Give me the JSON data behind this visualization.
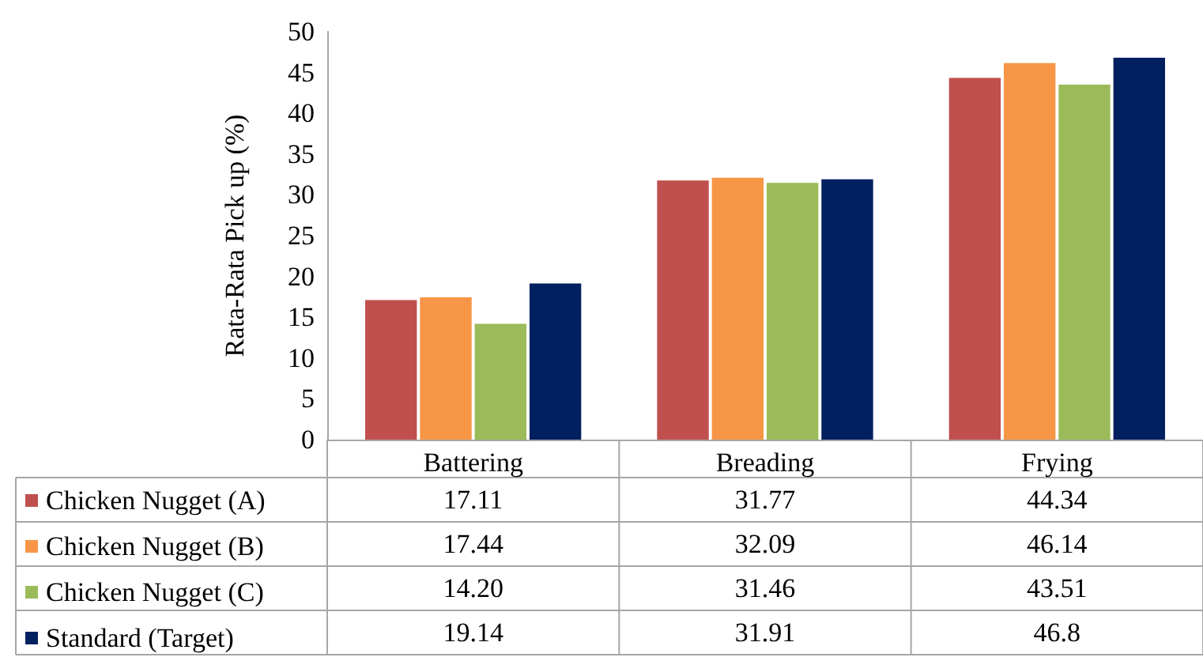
{
  "chart_data": {
    "type": "bar",
    "ylabel": "Rata-Rata Pick up (%)",
    "categories": [
      "Battering",
      "Breading",
      "Frying"
    ],
    "series": [
      {
        "name": "Chicken Nugget (A)",
        "color": "#c0504d",
        "values": [
          17.11,
          31.77,
          44.34
        ],
        "value_labels": [
          "17.11",
          "31.77",
          "44.34"
        ]
      },
      {
        "name": "Chicken Nugget (B)",
        "color": "#f79646",
        "values": [
          17.44,
          32.09,
          46.14
        ],
        "value_labels": [
          "17.44",
          "32.09",
          "46.14"
        ]
      },
      {
        "name": "Chicken Nugget (C)",
        "color": "#9bbb59",
        "values": [
          14.2,
          31.46,
          43.51
        ],
        "value_labels": [
          "14.20",
          "31.46",
          "43.51"
        ]
      },
      {
        "name": "Standard (Target)",
        "color": "#002060",
        "values": [
          19.14,
          31.91,
          46.8
        ],
        "value_labels": [
          "19.14",
          "31.91",
          "46.8"
        ]
      }
    ],
    "ylim": [
      0,
      50
    ],
    "yticks": [
      0,
      5,
      10,
      15,
      20,
      25,
      30,
      35,
      40,
      45,
      50
    ],
    "grid": false,
    "legend": "bottom"
  }
}
